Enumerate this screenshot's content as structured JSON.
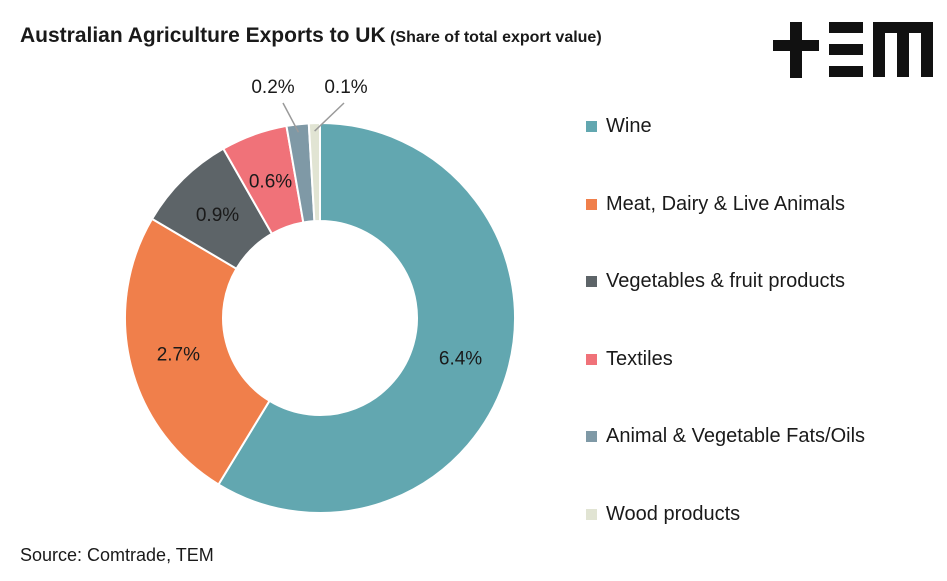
{
  "title": "Australian Agriculture Exports to UK",
  "subtitle": "(Share of total export value)",
  "source": "Source: Comtrade, TEM",
  "logo_text": "TEM",
  "chart_data": {
    "type": "pie",
    "style": "donut",
    "legend_position": "right",
    "series": [
      {
        "name": "Wine",
        "value": 6.4,
        "label": "6.4%",
        "color": "#62a7b0"
      },
      {
        "name": "Meat, Dairy & Live Animals",
        "value": 2.7,
        "label": "2.7%",
        "color": "#f07f4b"
      },
      {
        "name": "Vegetables & fruit products",
        "value": 0.9,
        "label": "0.9%",
        "color": "#5d6468"
      },
      {
        "name": "Textiles",
        "value": 0.6,
        "label": "0.6%",
        "color": "#f07279"
      },
      {
        "name": "Animal & Vegetable Fats/Oils",
        "value": 0.2,
        "label": "0.2%",
        "color": "#7f99a6"
      },
      {
        "name": "Wood products",
        "value": 0.1,
        "label": "0.1%",
        "color": "#e1e4d3"
      }
    ]
  }
}
